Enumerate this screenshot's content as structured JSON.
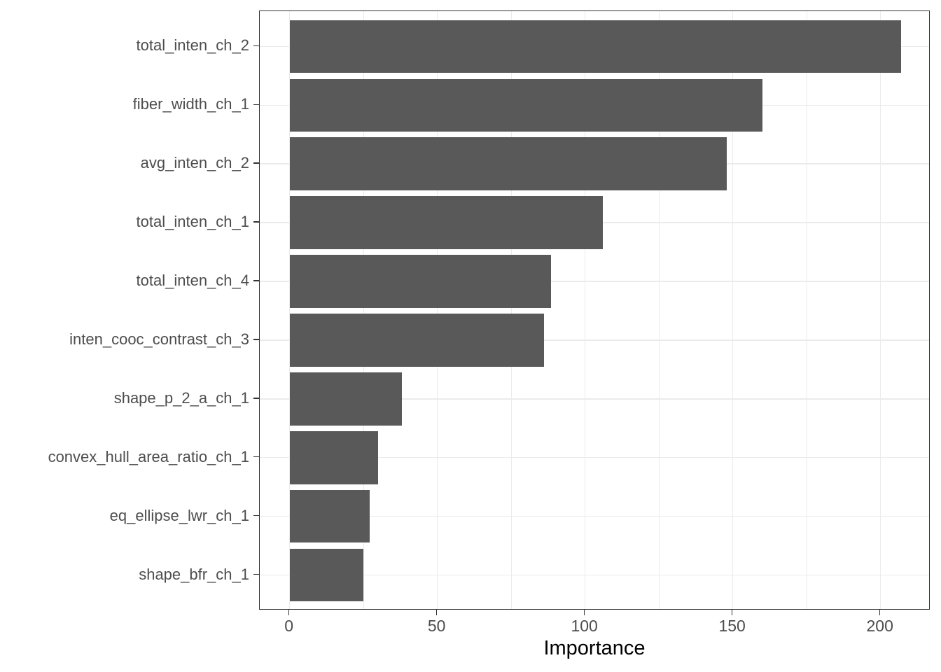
{
  "chart_data": {
    "type": "bar",
    "orientation": "horizontal",
    "title": "",
    "xlabel": "Importance",
    "ylabel": "",
    "categories": [
      "total_inten_ch_2",
      "fiber_width_ch_1",
      "avg_inten_ch_2",
      "total_inten_ch_1",
      "total_inten_ch_4",
      "inten_cooc_contrast_ch_3",
      "shape_p_2_a_ch_1",
      "convex_hull_area_ratio_ch_1",
      "eq_ellipse_lwr_ch_1",
      "shape_bfr_ch_1"
    ],
    "values": [
      207,
      160,
      148,
      106,
      88.5,
      86,
      38,
      30,
      27,
      25
    ],
    "x_ticks": [
      0,
      50,
      100,
      150,
      200
    ],
    "x_minor_ticks": [
      25,
      75,
      125,
      175
    ],
    "x_domain": [
      -10.1,
      216.9
    ],
    "bar_rel_width": 0.9,
    "grid": "on",
    "legend": "none",
    "colors": {
      "bar": "#595959",
      "grid": "#EBEBEB",
      "panel_border": "#333333",
      "axis_text": "#4D4D4D",
      "axis_title": "#000000",
      "tick": "#333333",
      "background": "#FFFFFF"
    }
  }
}
